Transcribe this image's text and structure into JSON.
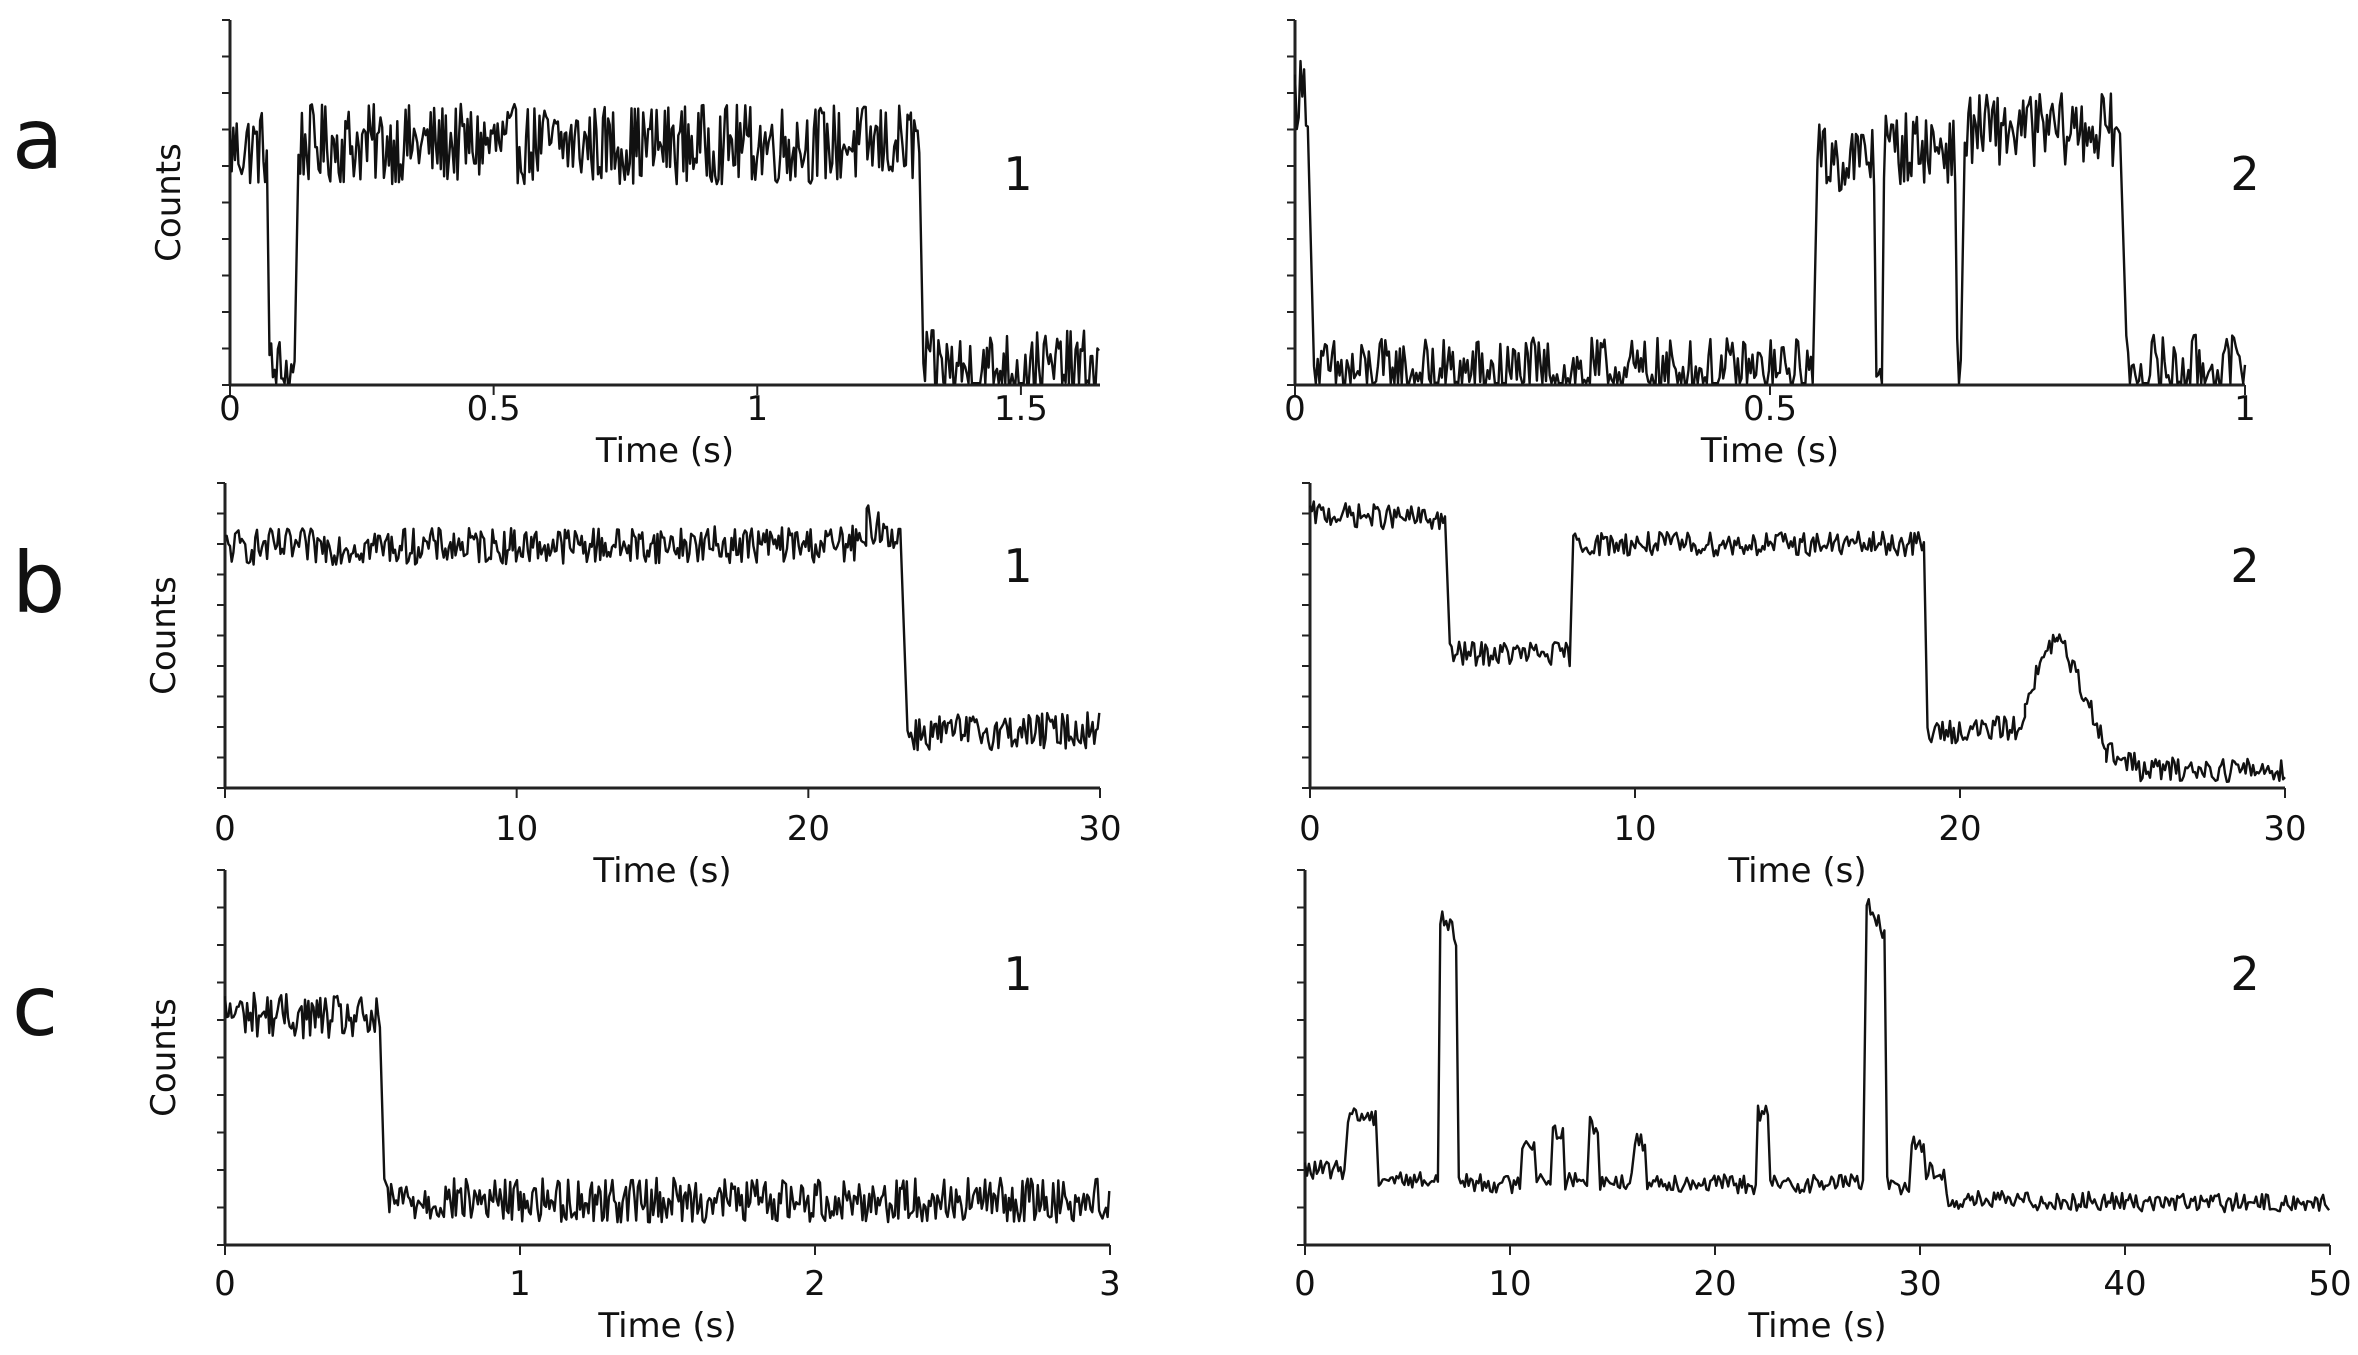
{
  "rows": [
    {
      "letter": "a",
      "panels": [
        {
          "number": "1",
          "chart_data": {
            "type": "line",
            "xlabel": "Time (s)",
            "ylabel": "Counts",
            "xlim": [
              0,
              1.65
            ],
            "ylim": [
              0,
              100
            ],
            "xticks": [
              0,
              0.5,
              1,
              1.5
            ],
            "xtick_labels": [
              "0",
              "0.5",
              "1",
              "1.5"
            ],
            "noise": 11,
            "color": "#111111",
            "segments": [
              {
                "x": [
                  0,
                  0.07
                ],
                "y": [
                  65,
                  65
                ]
              },
              {
                "x": [
                  0.075,
                  0.125
                ],
                "y": [
                  3,
                  3
                ]
              },
              {
                "x": [
                  0.13,
                  1.31
                ],
                "y": [
                  66,
                  66
                ]
              },
              {
                "x": [
                  1.315,
                  1.65
                ],
                "y": [
                  4,
                  4
                ]
              }
            ]
          }
        },
        {
          "number": "2",
          "chart_data": {
            "type": "line",
            "xlabel": "Time (s)",
            "ylabel": "",
            "xlim": [
              0,
              1
            ],
            "ylim": [
              0,
              100
            ],
            "xticks": [
              0,
              0.5,
              1
            ],
            "xtick_labels": [
              "0",
              "0.5",
              "1"
            ],
            "noise": 10,
            "color": "#111111",
            "segments": [
              {
                "x": [
                  0,
                  0.015
                ],
                "y": [
                  80,
                  80
                ]
              },
              {
                "x": [
                  0.02,
                  0.545
                ],
                "y": [
                  3,
                  3
                ]
              },
              {
                "x": [
                  0.55,
                  0.61
                ],
                "y": [
                  62,
                  62
                ]
              },
              {
                "x": [
                  0.612,
                  0.618
                ],
                "y": [
                  3,
                  3
                ]
              },
              {
                "x": [
                  0.62,
                  0.695
                ],
                "y": [
                  65,
                  65
                ]
              },
              {
                "x": [
                  0.697,
                  0.702
                ],
                "y": [
                  3,
                  3
                ]
              },
              {
                "x": [
                  0.705,
                  0.87
                ],
                "y": [
                  70,
                  70
                ]
              },
              {
                "x": [
                  0.875,
                  1.0
                ],
                "y": [
                  4,
                  4
                ]
              }
            ]
          }
        }
      ]
    },
    {
      "letter": "b",
      "panels": [
        {
          "number": "1",
          "chart_data": {
            "type": "line",
            "xlabel": "Time (s)",
            "ylabel": "Counts",
            "xlim": [
              0,
              30
            ],
            "ylim": [
              0,
              100
            ],
            "xticks": [
              0,
              10,
              20,
              30
            ],
            "xtick_labels": [
              "0",
              "10",
              "20",
              "30"
            ],
            "noise": 6,
            "color": "#111111",
            "segments": [
              {
                "x": [
                  0,
                  22
                ],
                "y": [
                  79,
                  80
                ]
              },
              {
                "x": [
                  22,
                  23.2
                ],
                "y": [
                  87,
                  82
                ]
              },
              {
                "x": [
                  23.4,
                  30
                ],
                "y": [
                  18,
                  19
                ]
              }
            ]
          }
        },
        {
          "number": "2",
          "chart_data": {
            "type": "line",
            "xlabel": "Time (s)",
            "ylabel": "",
            "xlim": [
              0,
              30
            ],
            "ylim": [
              0,
              100
            ],
            "xticks": [
              0,
              10,
              20,
              30
            ],
            "xtick_labels": [
              "0",
              "10",
              "20",
              "30"
            ],
            "noise": 4,
            "color": "#111111",
            "segments": [
              {
                "x": [
                  0,
                  4.2
                ],
                "y": [
                  90,
                  88
                ]
              },
              {
                "x": [
                  4.3,
                  8
                ],
                "y": [
                  44,
                  44
                ]
              },
              {
                "x": [
                  8.1,
                  18.9
                ],
                "y": [
                  80,
                  80
                ]
              },
              {
                "x": [
                  19,
                  22
                ],
                "y": [
                  18,
                  20
                ]
              },
              {
                "x": [
                  22,
                  23
                ],
                "y": [
                  30,
                  50
                ]
              },
              {
                "x": [
                  23,
                  24.5
                ],
                "y": [
                  50,
                  15
                ]
              },
              {
                "x": [
                  24.5,
                  25.5
                ],
                "y": [
                  12,
                  7
                ]
              },
              {
                "x": [
                  25.5,
                  30
                ],
                "y": [
                  6,
                  6
                ]
              }
            ]
          }
        }
      ]
    },
    {
      "letter": "c",
      "panels": [
        {
          "number": "1",
          "chart_data": {
            "type": "line",
            "xlabel": "Time (s)",
            "ylabel": "Counts",
            "xlim": [
              0,
              3
            ],
            "ylim": [
              0,
              100
            ],
            "xticks": [
              0,
              1,
              2,
              3
            ],
            "xtick_labels": [
              "0",
              "1",
              "2",
              "3"
            ],
            "noise": 6,
            "color": "#111111",
            "segments": [
              {
                "x": [
                  0,
                  0.53
                ],
                "y": [
                  62,
                  60
                ]
              },
              {
                "x": [
                  0.54,
                  3
                ],
                "y": [
                  12,
                  12
                ]
              }
            ]
          }
        },
        {
          "number": "2",
          "chart_data": {
            "type": "line",
            "xlabel": "Time (s)",
            "ylabel": "",
            "xlim": [
              0,
              50
            ],
            "ylim": [
              0,
              100
            ],
            "xticks": [
              0,
              10,
              20,
              30,
              40,
              50
            ],
            "xtick_labels": [
              "0",
              "10",
              "20",
              "30",
              "40",
              "50"
            ],
            "noise": 2.5,
            "color": "#111111",
            "segments": [
              {
                "x": [
                  0,
                  2
                ],
                "y": [
                  20,
                  20
                ]
              },
              {
                "x": [
                  2.1,
                  3.5
                ],
                "y": [
                  35,
                  34
                ]
              },
              {
                "x": [
                  3.6,
                  6.5
                ],
                "y": [
                  18,
                  17
                ]
              },
              {
                "x": [
                  6.6,
                  7.4
                ],
                "y": [
                  88,
                  82
                ]
              },
              {
                "x": [
                  7.5,
                  10.5
                ],
                "y": [
                  17,
                  16
                ]
              },
              {
                "x": [
                  10.6,
                  11.2
                ],
                "y": [
                  28,
                  27
                ]
              },
              {
                "x": [
                  11.3,
                  12
                ],
                "y": [
                  18,
                  18
                ]
              },
              {
                "x": [
                  12.1,
                  12.6
                ],
                "y": [
                  30,
                  30
                ]
              },
              {
                "x": [
                  12.7,
                  13.8
                ],
                "y": [
                  17,
                  17
                ]
              },
              {
                "x": [
                  13.9,
                  14.3
                ],
                "y": [
                  32,
                  32
                ]
              },
              {
                "x": [
                  14.4,
                  16
                ],
                "y": [
                  17,
                  17
                ]
              },
              {
                "x": [
                  16.1,
                  16.6
                ],
                "y": [
                  28,
                  27
                ]
              },
              {
                "x": [
                  16.7,
                  22
                ],
                "y": [
                  17,
                  16
                ]
              },
              {
                "x": [
                  22.1,
                  22.6
                ],
                "y": [
                  35,
                  35
                ]
              },
              {
                "x": [
                  22.7,
                  27.3
                ],
                "y": [
                  16,
                  17
                ]
              },
              {
                "x": [
                  27.4,
                  28.3
                ],
                "y": [
                  92,
                  82
                ]
              },
              {
                "x": [
                  28.4,
                  29.5
                ],
                "y": [
                  16,
                  16
                ]
              },
              {
                "x": [
                  29.6,
                  30.2
                ],
                "y": [
                  28,
                  26
                ]
              },
              {
                "x": [
                  30.3,
                  31.2
                ],
                "y": [
                  20,
                  18
                ]
              },
              {
                "x": [
                  31.3,
                  50
                ],
                "y": [
                  12,
                  11
                ]
              }
            ]
          }
        }
      ]
    }
  ]
}
